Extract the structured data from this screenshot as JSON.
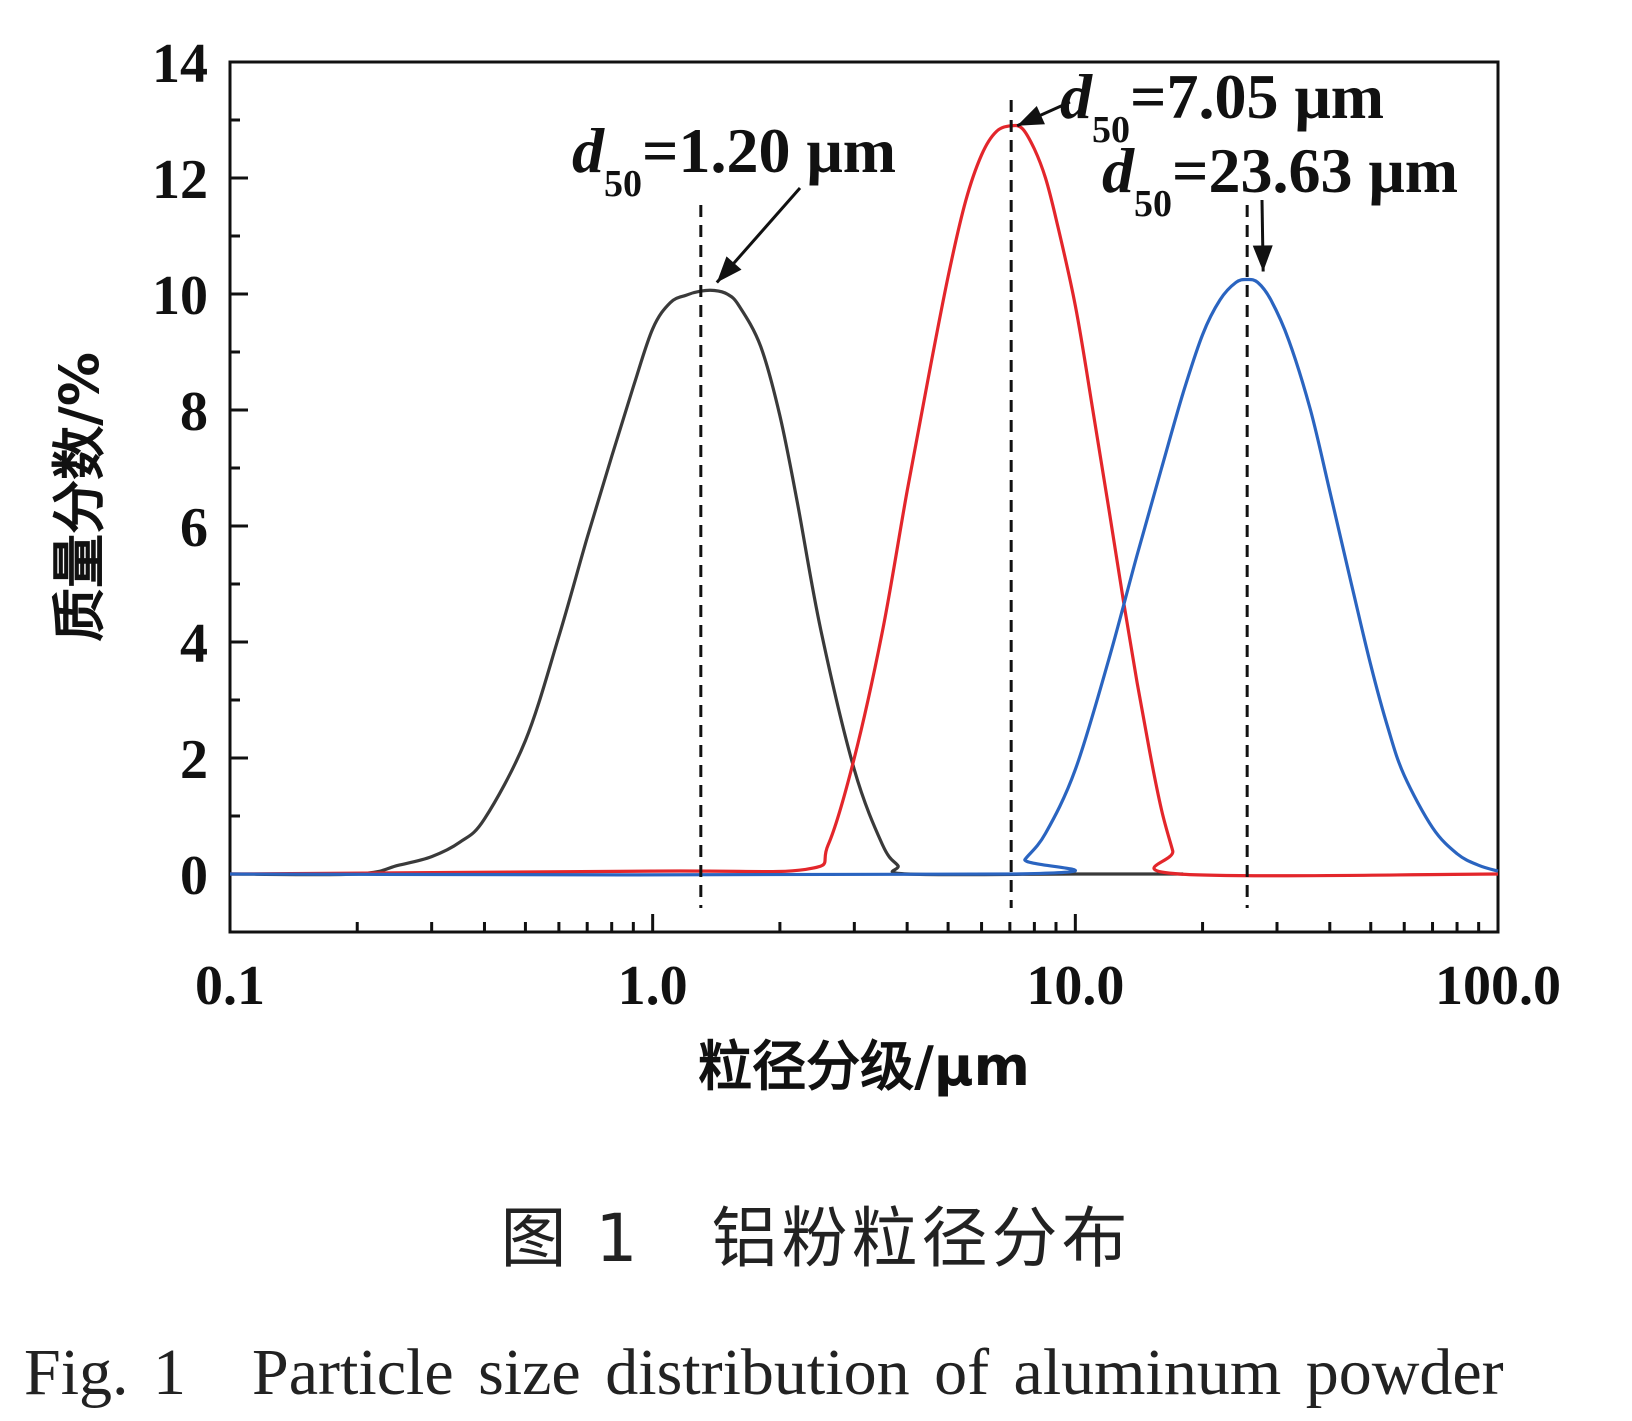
{
  "chart_data": {
    "type": "line",
    "xscale": "log",
    "xlim": [
      0.1,
      100.0
    ],
    "ylim": [
      -1,
      14
    ],
    "xticks": [
      "0.1",
      "1.0",
      "10.0",
      "100.0"
    ],
    "yticks": [
      "0",
      "2",
      "4",
      "6",
      "8",
      "10",
      "12",
      "14"
    ],
    "xlabel": "粒径分级/μm",
    "ylabel": "质量分数/%",
    "grid": false,
    "series": [
      {
        "color": "#3a3a3a",
        "x": [
          0.1,
          0.2,
          0.25,
          0.3,
          0.35,
          0.4,
          0.5,
          0.6,
          0.7,
          0.8,
          0.9,
          1.0,
          1.1,
          1.2,
          1.3,
          1.4,
          1.5,
          1.6,
          1.8,
          2.0,
          2.2,
          2.5,
          3.0,
          3.5,
          3.8,
          4.0,
          10.0,
          18.0
        ],
        "y": [
          0,
          0,
          0.15,
          0.3,
          0.55,
          0.95,
          2.3,
          4.1,
          5.8,
          7.2,
          8.4,
          9.4,
          9.85,
          9.98,
          10.05,
          10.06,
          10.0,
          9.8,
          9.1,
          7.9,
          6.4,
          4.2,
          1.8,
          0.5,
          0.15,
          0,
          0,
          0
        ]
      },
      {
        "color": "#e3262b",
        "x": [
          0.1,
          1.0,
          2.3,
          2.6,
          3.0,
          3.5,
          4.0,
          4.5,
          5.0,
          5.5,
          6.0,
          6.5,
          7.05,
          7.5,
          8.0,
          8.5,
          9.0,
          10.0,
          11.0,
          12.0,
          13.0,
          14.0,
          15.0,
          16.0,
          17.0,
          17.6,
          100.0
        ],
        "y": [
          0,
          0.05,
          0.08,
          0.5,
          2.0,
          4.2,
          6.6,
          8.6,
          10.3,
          11.6,
          12.4,
          12.8,
          12.9,
          12.85,
          12.5,
          12.0,
          11.3,
          9.8,
          8.0,
          6.3,
          4.7,
          3.3,
          2.1,
          1.1,
          0.4,
          0,
          0
        ]
      },
      {
        "color": "#2a64c0",
        "x": [
          0.1,
          7.2,
          7.6,
          8.5,
          10.0,
          12.0,
          14.0,
          16.0,
          18.0,
          20.0,
          22.0,
          24.0,
          25.5,
          27.0,
          29.0,
          32.0,
          36.0,
          40.0,
          45.0,
          50.0,
          55.0,
          60.0,
          70.0,
          80.0,
          90.0,
          100.0
        ],
        "y": [
          0,
          0,
          0.25,
          0.7,
          1.8,
          3.7,
          5.5,
          7.0,
          8.3,
          9.3,
          9.9,
          10.2,
          10.25,
          10.2,
          9.9,
          9.2,
          8.0,
          6.6,
          5.0,
          3.6,
          2.5,
          1.7,
          0.8,
          0.35,
          0.15,
          0.05
        ]
      }
    ],
    "annotations": [
      {
        "text_d": "d",
        "text_sub": "50",
        "text_value": "=1.20 μm",
        "x": 1.3,
        "peak_y": 10.06
      },
      {
        "text_d": "d",
        "text_sub": "50",
        "text_value": "=7.05 μm",
        "x": 7.05,
        "peak_y": 12.9
      },
      {
        "text_d": "d",
        "text_sub": "50",
        "text_value": "=23.63 μm",
        "x": 25.5,
        "peak_y": 10.25
      }
    ]
  },
  "caption": {
    "cn": "图 1　铝粉粒径分布",
    "en": "Fig. 1　Particle size distribution of aluminum powder"
  }
}
